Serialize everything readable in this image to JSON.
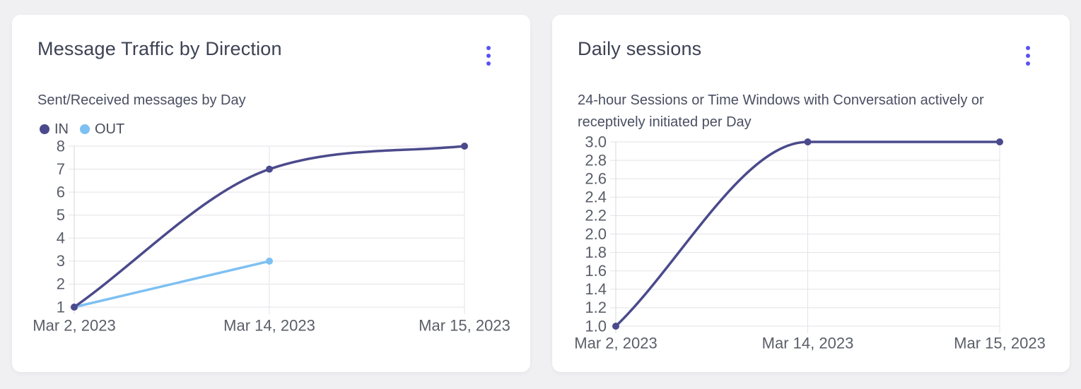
{
  "page": {
    "background_color": "#f0f0f3",
    "card_background_color": "#ffffff",
    "accent_color": "#5a52f3",
    "grid_color": "#e3e3e8",
    "axis_color": "#d6d7dd"
  },
  "cards": [
    {
      "menu_icon": "kebab-vertical-icon"
    },
    {
      "menu_icon": "kebab-vertical-icon"
    }
  ],
  "chart_data": [
    {
      "type": "line",
      "title": "Message Traffic by Direction",
      "subtitle": "Sent/Received messages by Day",
      "categories": [
        "Mar 2, 2023",
        "Mar 14, 2023",
        "Mar 15, 2023"
      ],
      "series": [
        {
          "name": "IN",
          "color": "#4b4a8c",
          "values": [
            1,
            7,
            8
          ]
        },
        {
          "name": "OUT",
          "color": "#7dc0f2",
          "values": [
            1,
            3,
            null
          ]
        }
      ],
      "xlabel": "",
      "ylabel": "",
      "ylim": [
        1,
        8
      ],
      "ytick_step": 1,
      "ytick_decimals": 0,
      "grid": true,
      "curve": "monotone",
      "legend_position": "top-left"
    },
    {
      "type": "line",
      "title": "Daily sessions",
      "subtitle": "24-hour Sessions or Time Windows with Conversation actively or receptively initiated per Day",
      "categories": [
        "Mar 2, 2023",
        "Mar 14, 2023",
        "Mar 15, 2023"
      ],
      "series": [
        {
          "color": "#4b4a8c",
          "values": [
            1.0,
            3.0,
            3.0
          ]
        }
      ],
      "xlabel": "",
      "ylabel": "",
      "ylim": [
        1.0,
        3.0
      ],
      "ytick_step": 0.2,
      "ytick_decimals": 1,
      "grid": true,
      "curve": "monotone",
      "legend_position": "none"
    }
  ]
}
